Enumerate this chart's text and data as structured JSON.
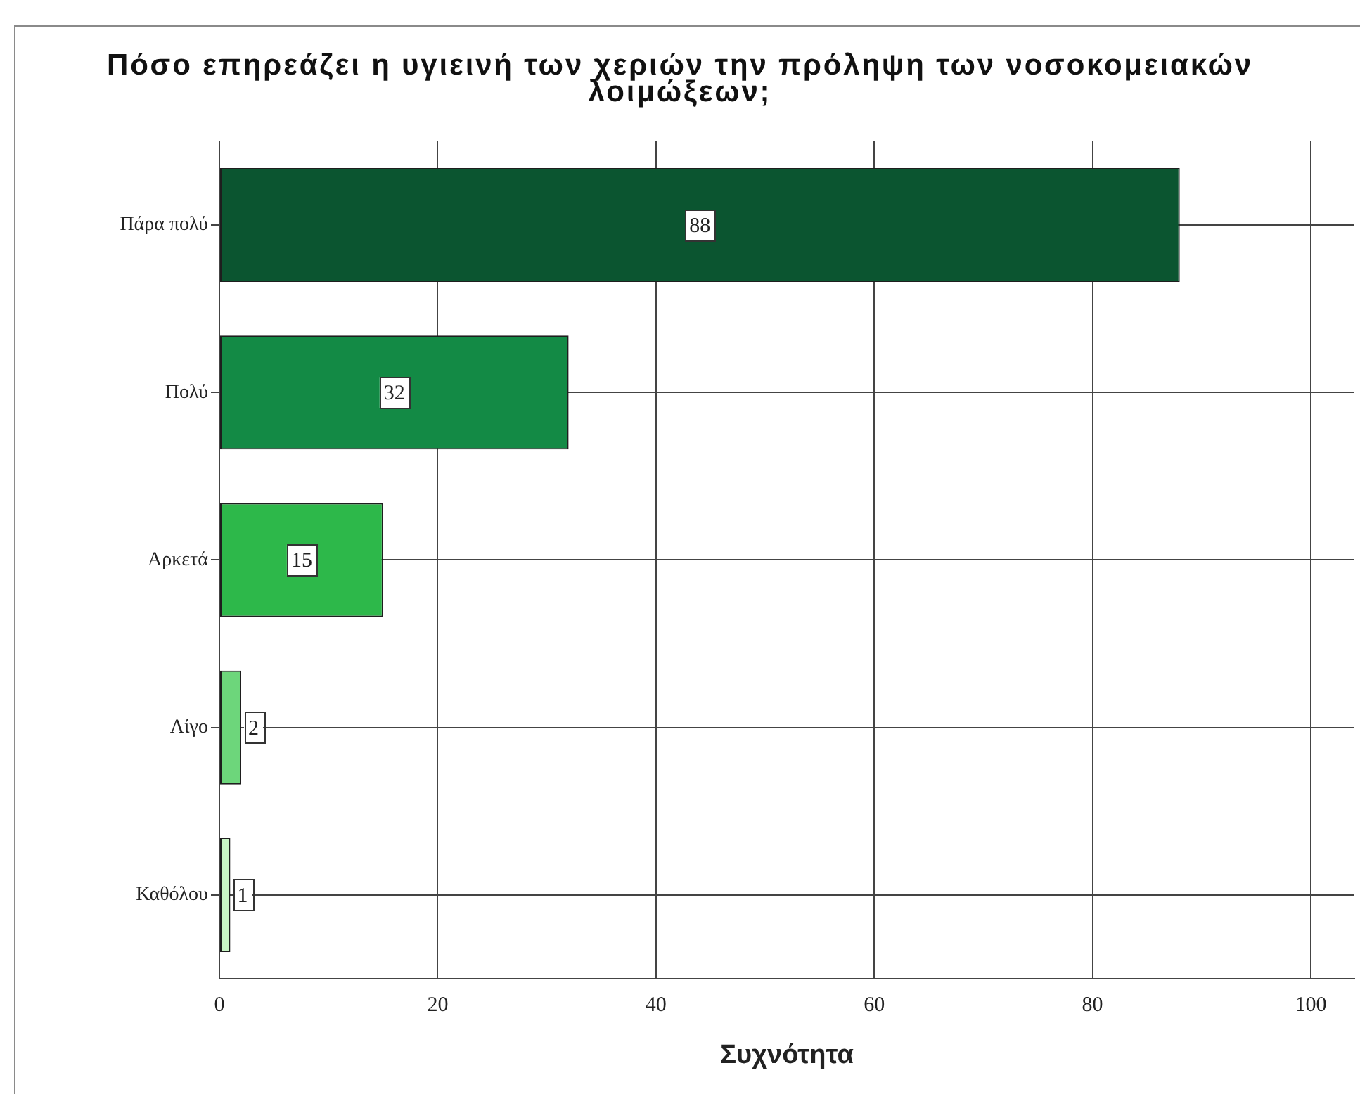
{
  "chart_data": {
    "type": "bar",
    "orientation": "horizontal",
    "title": "Πόσο επηρεάζει η υγιεινή των χεριών την πρόληψη των νοσοκομειακών λοιμώξεων;",
    "xlabel": "Συχνότητα",
    "categories": [
      "Πάρα πολύ",
      "Πολύ",
      "Αρκετά",
      "Λίγο",
      "Καθόλου"
    ],
    "values": [
      88,
      32,
      15,
      2,
      1
    ],
    "colors": [
      "#0b5530",
      "#138a45",
      "#2db84a",
      "#6dd67b",
      "#c8f5c5"
    ],
    "xlim": [
      0,
      104
    ],
    "xticks": [
      0,
      20,
      40,
      60,
      80,
      100
    ],
    "grid": true,
    "data_labels": true
  }
}
